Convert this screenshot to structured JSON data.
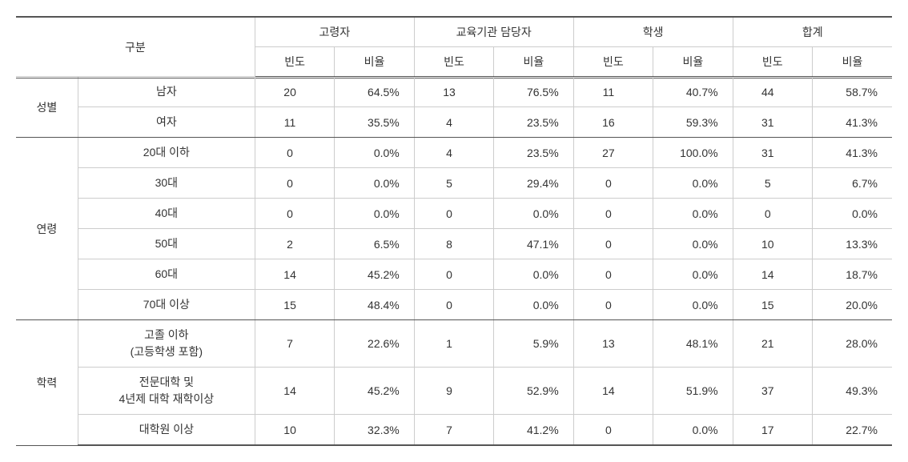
{
  "table": {
    "header": {
      "category": "구분",
      "groups": [
        {
          "label": "고령자",
          "sub": [
            "빈도",
            "비율"
          ]
        },
        {
          "label": "교육기관 담당자",
          "sub": [
            "빈도",
            "비율"
          ]
        },
        {
          "label": "학생",
          "sub": [
            "빈도",
            "비율"
          ]
        },
        {
          "label": "합계",
          "sub": [
            "빈도",
            "비율"
          ]
        }
      ]
    },
    "sections": [
      {
        "name": "성별",
        "rows": [
          {
            "label": "남자",
            "cells": [
              "20",
              "64.5%",
              "13",
              "76.5%",
              "11",
              "40.7%",
              "44",
              "58.7%"
            ]
          },
          {
            "label": "여자",
            "cells": [
              "11",
              "35.5%",
              "4",
              "23.5%",
              "16",
              "59.3%",
              "31",
              "41.3%"
            ]
          }
        ]
      },
      {
        "name": "연령",
        "rows": [
          {
            "label": "20대 이하",
            "cells": [
              "0",
              "0.0%",
              "4",
              "23.5%",
              "27",
              "100.0%",
              "31",
              "41.3%"
            ]
          },
          {
            "label": "30대",
            "cells": [
              "0",
              "0.0%",
              "5",
              "29.4%",
              "0",
              "0.0%",
              "5",
              "6.7%"
            ]
          },
          {
            "label": "40대",
            "cells": [
              "0",
              "0.0%",
              "0",
              "0.0%",
              "0",
              "0.0%",
              "0",
              "0.0%"
            ]
          },
          {
            "label": "50대",
            "cells": [
              "2",
              "6.5%",
              "8",
              "47.1%",
              "0",
              "0.0%",
              "10",
              "13.3%"
            ]
          },
          {
            "label": "60대",
            "cells": [
              "14",
              "45.2%",
              "0",
              "0.0%",
              "0",
              "0.0%",
              "14",
              "18.7%"
            ]
          },
          {
            "label": "70대 이상",
            "cells": [
              "15",
              "48.4%",
              "0",
              "0.0%",
              "0",
              "0.0%",
              "15",
              "20.0%"
            ]
          }
        ]
      },
      {
        "name": "학력",
        "rows": [
          {
            "label": "고졸 이하\n(고등학생 포함)",
            "cells": [
              "7",
              "22.6%",
              "1",
              "5.9%",
              "13",
              "48.1%",
              "21",
              "28.0%"
            ]
          },
          {
            "label": "전문대학 및\n4년제 대학 재학이상",
            "cells": [
              "14",
              "45.2%",
              "9",
              "52.9%",
              "14",
              "51.9%",
              "37",
              "49.3%"
            ]
          },
          {
            "label": "대학원 이상",
            "cells": [
              "10",
              "32.3%",
              "7",
              "41.2%",
              "0",
              "0.0%",
              "17",
              "22.7%"
            ]
          }
        ]
      }
    ]
  },
  "style": {
    "border_color_strong": "#555555",
    "border_color_light": "#cccccc",
    "text_color": "#333333",
    "background": "#ffffff",
    "font_size": 14
  }
}
